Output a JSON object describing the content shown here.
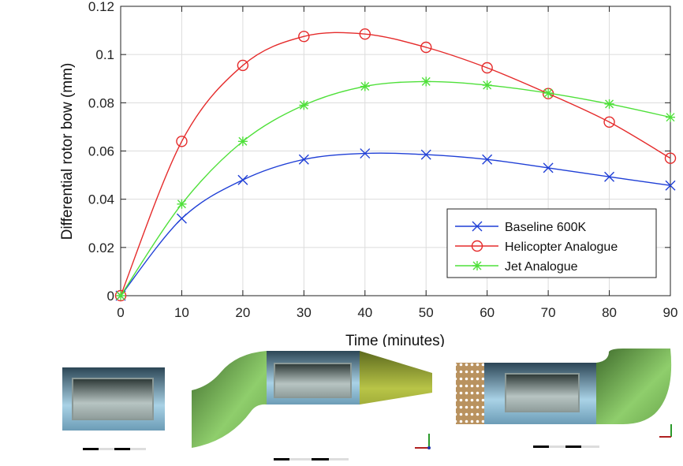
{
  "chart_data": {
    "type": "line",
    "title": "",
    "xlabel": "Time (minutes)",
    "ylabel": "Differential rotor bow (mm)",
    "xlim": [
      0,
      90
    ],
    "ylim": [
      0,
      0.12
    ],
    "xticks": [
      0,
      10,
      20,
      30,
      40,
      50,
      60,
      70,
      80,
      90
    ],
    "xtick_labels": [
      "0",
      "10",
      "20",
      "30",
      "40",
      "50",
      "60",
      "70",
      "80",
      "90"
    ],
    "yticks": [
      0,
      0.02,
      0.04,
      0.06,
      0.08,
      0.1,
      0.12
    ],
    "ytick_labels": [
      "0",
      "0.02",
      "0.04",
      "0.06",
      "0.08",
      "0.1",
      "0.12"
    ],
    "grid": true,
    "legend_position": "lower-right",
    "x": [
      0,
      10,
      20,
      30,
      40,
      50,
      60,
      70,
      80,
      90
    ],
    "series": [
      {
        "name": "Baseline 600K",
        "color": "#1f3fd6",
        "marker": "x",
        "values": [
          0,
          0.032,
          0.048,
          0.0565,
          0.059,
          0.0585,
          0.0565,
          0.053,
          0.0493,
          0.0457
        ]
      },
      {
        "name": "Helicopter Analogue",
        "color": "#e52b2b",
        "marker": "o",
        "values": [
          0,
          0.064,
          0.0955,
          0.1075,
          0.1085,
          0.103,
          0.0945,
          0.0838,
          0.072,
          0.057
        ]
      },
      {
        "name": "Jet Analogue",
        "color": "#4fe03a",
        "marker": "*",
        "values": [
          0,
          0.038,
          0.064,
          0.079,
          0.0868,
          0.0888,
          0.0873,
          0.084,
          0.0795,
          0.074
        ]
      }
    ]
  }
}
